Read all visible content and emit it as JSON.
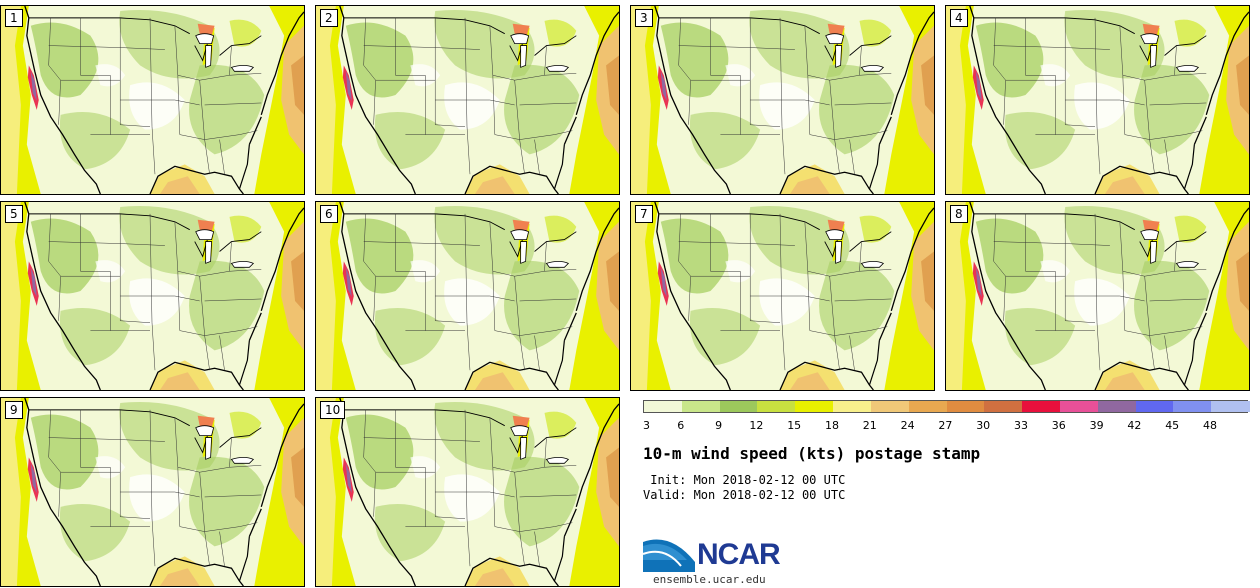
{
  "panels": [
    "1",
    "2",
    "3",
    "4",
    "5",
    "6",
    "7",
    "8",
    "9",
    "10"
  ],
  "colorbar": {
    "colors": [
      "#f2f8d8",
      "#c9e68a",
      "#9cc85c",
      "#c8e040",
      "#e8f000",
      "#f8f08c",
      "#f0c878",
      "#e8a850",
      "#e08c40",
      "#d07040",
      "#e8103c",
      "#e85098",
      "#9068a0",
      "#6068f0",
      "#8090f0",
      "#b0c0f0"
    ],
    "ticks": [
      "3",
      "6",
      "9",
      "12",
      "15",
      "18",
      "21",
      "24",
      "27",
      "30",
      "33",
      "36",
      "39",
      "42",
      "45",
      "48"
    ]
  },
  "title": "10-m wind speed (kts) postage stamp",
  "init_line": " Init: Mon 2018-02-12 00 UTC",
  "valid_line": "Valid: Mon 2018-02-12 00 UTC",
  "logo": {
    "name": "NCAR",
    "url": "ensemble.ucar.edu"
  }
}
